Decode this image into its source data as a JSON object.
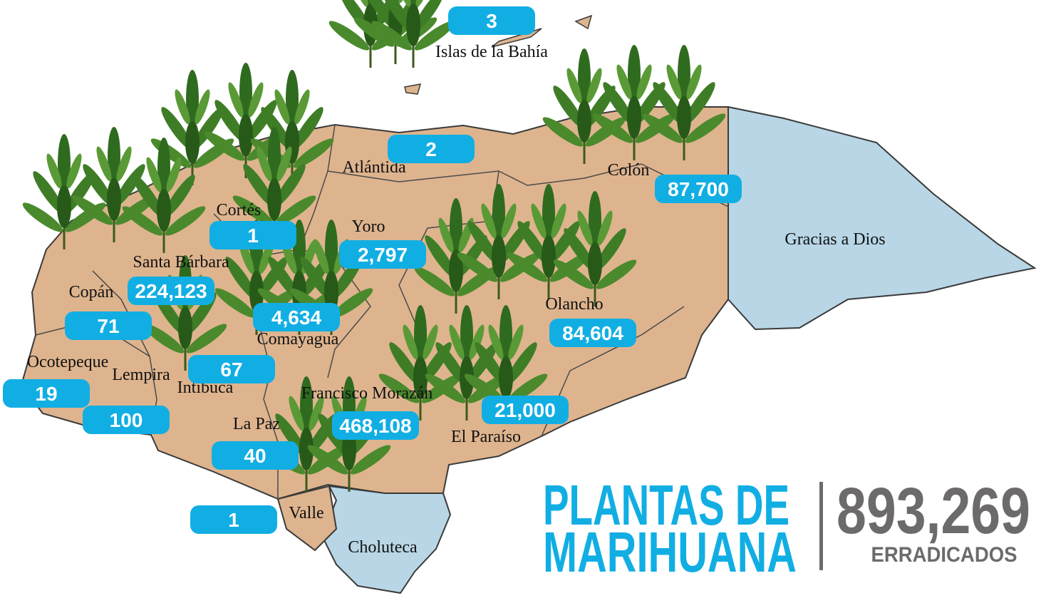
{
  "title": [
    "PLANTAS DE",
    "MARIHUANA"
  ],
  "total": "893,269",
  "total_caption": "ERRADICADOS",
  "departments": [
    {
      "name": "Islas de la Bahía",
      "plants": "3"
    },
    {
      "name": "Atlántida",
      "plants": "2"
    },
    {
      "name": "Colón",
      "plants": "87,700"
    },
    {
      "name": "Gracias a Dios"
    },
    {
      "name": "Cortés",
      "plants": "1"
    },
    {
      "name": "Yoro",
      "plants": "2,797"
    },
    {
      "name": "Santa Bárbara",
      "plants": "224,123"
    },
    {
      "name": "Copán",
      "plants": "71"
    },
    {
      "name": "Comayagua",
      "plants": "4,634"
    },
    {
      "name": "Olancho",
      "plants": "84,604"
    },
    {
      "name": "Ocotepeque",
      "plants": "19"
    },
    {
      "name": "Lempira",
      "plants": "100"
    },
    {
      "name": "Intibucá",
      "plants": "67"
    },
    {
      "name": "Francisco Morazán",
      "plants": "468,108"
    },
    {
      "name": "El Paraíso",
      "plants": "21,000"
    },
    {
      "name": "La Paz",
      "plants": "40"
    },
    {
      "name": "Valle",
      "plants": "1"
    },
    {
      "name": "Choluteca"
    }
  ]
}
